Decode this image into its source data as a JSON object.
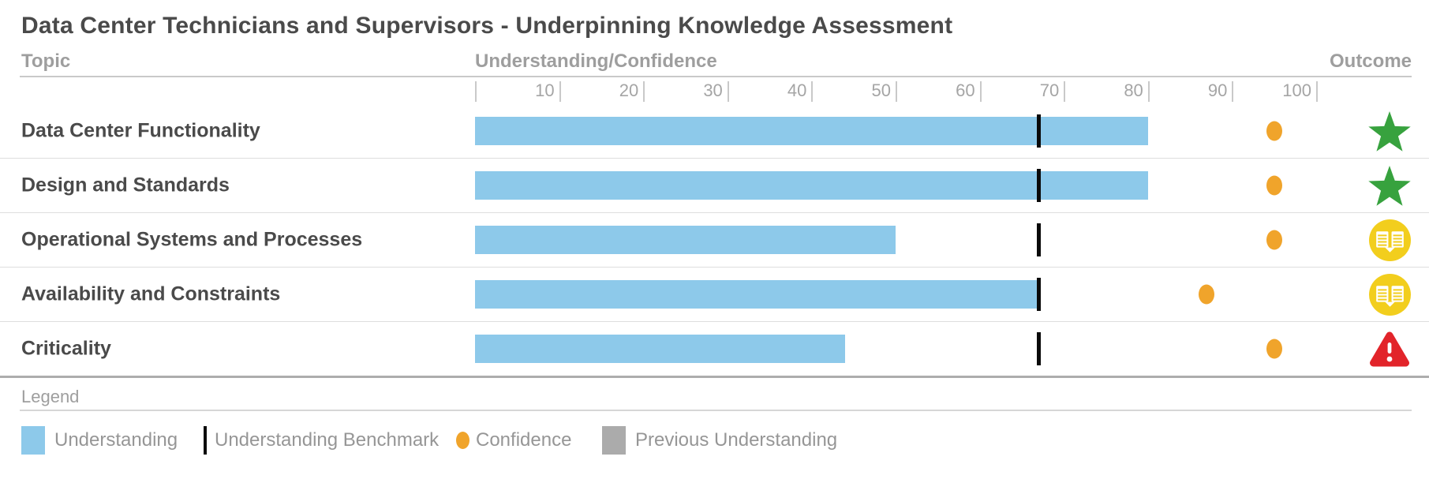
{
  "title": "Data Center Technicians and Supervisors - Underpinning Knowledge Assessment",
  "headers": {
    "topic": "Topic",
    "understanding_confidence": "Understanding/Confidence",
    "outcome": "Outcome"
  },
  "colors": {
    "understanding_bar": "#8DC9EA",
    "benchmark": "#0a0a0a",
    "confidence_dot": "#F0A42B",
    "previous_understanding": "#ABABAB",
    "star_green": "#37A23E",
    "book_yellow": "#F2CE1D",
    "warning_red": "#E2242A"
  },
  "chart_data": {
    "type": "bar",
    "title": "Data Center Technicians and Supervisors - Underpinning Knowledge Assessment",
    "xlabel": "Understanding/Confidence",
    "axis": {
      "min": 0,
      "max": 100,
      "tick_step": 10,
      "tick_labels": [
        10,
        20,
        30,
        40,
        50,
        60,
        70,
        80,
        90,
        100
      ]
    },
    "rows": [
      {
        "topic": "Data Center Functionality",
        "understanding": 80,
        "benchmark": 67,
        "confidence": 95,
        "outcome": "star"
      },
      {
        "topic": "Design and Standards",
        "understanding": 80,
        "benchmark": 67,
        "confidence": 95,
        "outcome": "star"
      },
      {
        "topic": "Operational Systems and Processes",
        "understanding": 50,
        "benchmark": 67,
        "confidence": 95,
        "outcome": "book"
      },
      {
        "topic": "Availability and Constraints",
        "understanding": 67,
        "benchmark": 67,
        "confidence": 87,
        "outcome": "book"
      },
      {
        "topic": "Criticality",
        "understanding": 44,
        "benchmark": 67,
        "confidence": 95,
        "outcome": "warning"
      }
    ],
    "legend": {
      "title": "Legend",
      "items": [
        {
          "swatch": "understanding",
          "label": "Understanding"
        },
        {
          "swatch": "benchmark",
          "label": "Understanding Benchmark"
        },
        {
          "swatch": "confidence",
          "label": "Confidence"
        },
        {
          "swatch": "previous",
          "label": "Previous Understanding"
        }
      ],
      "item_x": [
        27,
        258,
        578,
        763
      ]
    }
  }
}
